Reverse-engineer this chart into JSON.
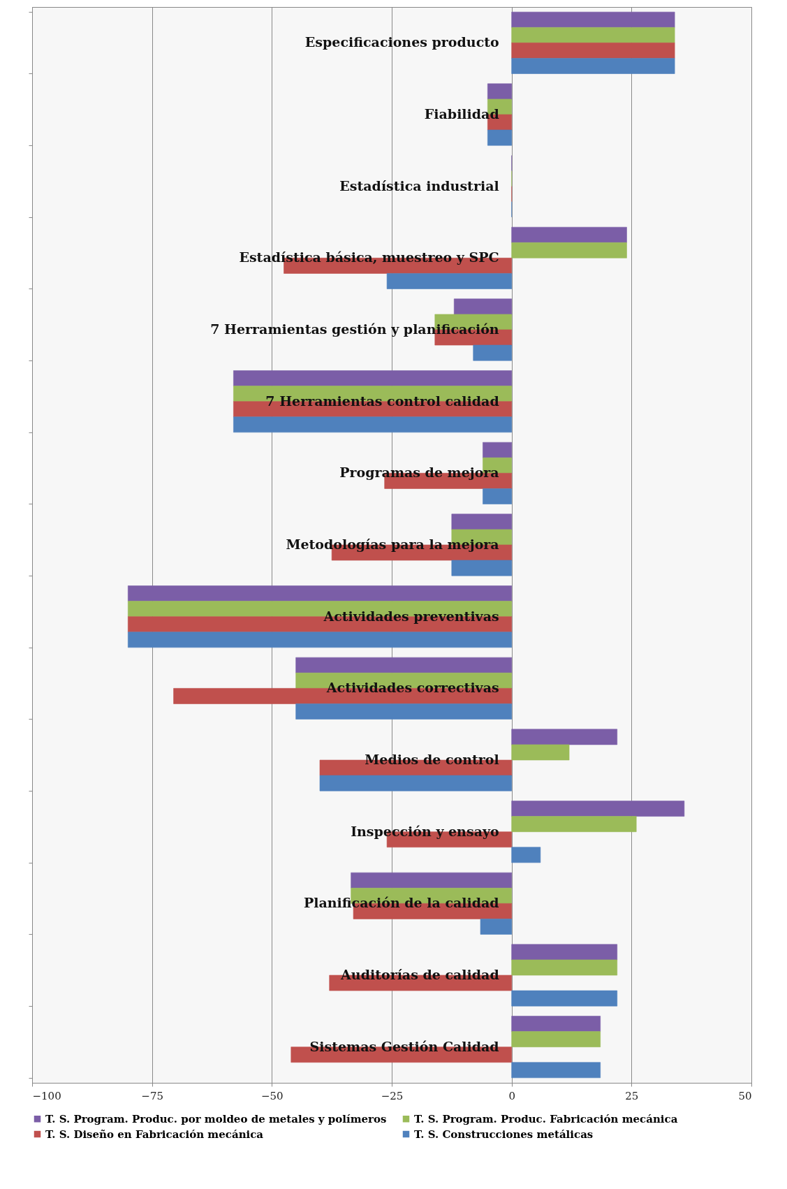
{
  "chart_data": {
    "type": "bar",
    "orientation": "horizontal",
    "categories": [
      "Especificaciones producto",
      "Fiabilidad",
      "Estadística industrial",
      "Estadística básica, muestreo y SPC",
      "7 Herramientas gestión y planificación",
      "7 Herramientas control calidad",
      "Programas de mejora",
      "Metodologías para la mejora",
      "Actividades preventivas",
      "Actividades correctivas",
      "Medios de control",
      "Inspección y ensayo",
      "Planificación de la calidad",
      "Auditorías de calidad",
      "Sistemas Gestión Calidad"
    ],
    "series": [
      {
        "name": "T. S. Program. Produc. por moldeo de metales y polímeros",
        "color": "#7b5ea7",
        "values": [
          34,
          -5,
          0,
          24,
          -12,
          -58,
          -6,
          -12.5,
          -80,
          -45,
          22,
          36,
          -33.5,
          22,
          18.5
        ]
      },
      {
        "name": "T. S. Program. Produc. Fabricación mecánica",
        "color": "#9bbb59",
        "values": [
          34,
          -5,
          0,
          24,
          -16,
          -58,
          -6,
          -12.5,
          -80,
          -45,
          12,
          26,
          -33.5,
          22,
          18.5
        ]
      },
      {
        "name": "T. S. Diseño en Fabricación mecánica",
        "color": "#c0504d",
        "values": [
          34,
          -5,
          0,
          -47.5,
          -16,
          -58,
          -26.5,
          -37.5,
          -80,
          -70.5,
          -40,
          -26,
          -33,
          -38,
          -46
        ]
      },
      {
        "name": "T. S. Construcciones metálicas",
        "color": "#4f81bd",
        "values": [
          34,
          -5,
          0,
          -26,
          -8,
          -58,
          -6,
          -12.5,
          -80,
          -45,
          -40,
          6,
          -6.5,
          22,
          18.5
        ]
      }
    ],
    "xlim": [
      -100,
      50
    ],
    "xticks": [
      -100,
      -75,
      -50,
      -25,
      0,
      25,
      50
    ],
    "grid": "x",
    "legend": "bottom"
  }
}
